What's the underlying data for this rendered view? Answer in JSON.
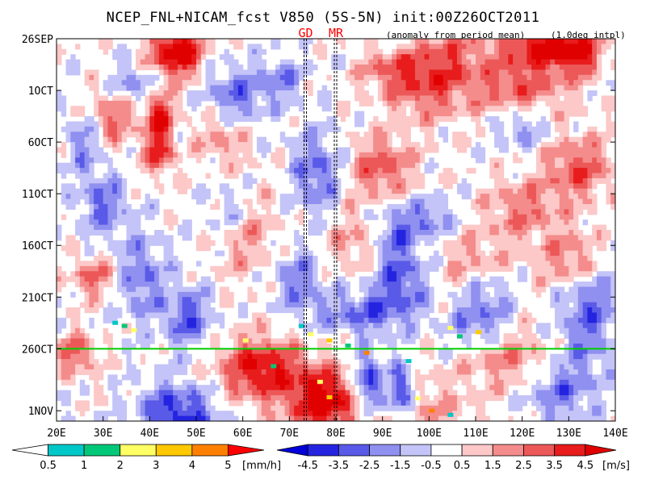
{
  "header": {
    "title": "NCEP_FNL+NICAM_fcst V850 (5S-5N) init:00Z26OCT2011",
    "note_left": "(anomaly from period mean)",
    "note_right": "(1.0deg intpl)"
  },
  "chart_data": {
    "type": "heatmap",
    "title": "NCEP_FNL+NICAM_fcst V850 (5S-5N) init:00Z26OCT2011",
    "x_axis": {
      "range": [
        20,
        140
      ],
      "ticks": [
        20,
        30,
        40,
        50,
        60,
        70,
        80,
        90,
        100,
        110,
        120,
        130,
        140
      ],
      "tick_labels": [
        "20E",
        "30E",
        "40E",
        "50E",
        "60E",
        "70E",
        "80E",
        "90E",
        "100E",
        "110E",
        "120E",
        "130E",
        "140E"
      ]
    },
    "y_axis": {
      "range": [
        "2011-09-26",
        "2011-11-02"
      ],
      "ticks": [
        "2011-09-26",
        "2011-10-01",
        "2011-10-06",
        "2011-10-11",
        "2011-10-16",
        "2011-10-21",
        "2011-10-26",
        "2011-11-01"
      ],
      "tick_labels": [
        "26SEP",
        "1OCT",
        "6OCT",
        "11OCT",
        "16OCT",
        "21OCT",
        "26OCT",
        "1NOV"
      ],
      "direction": "time increases downward"
    },
    "markers": [
      {
        "label": "GD",
        "lon": 73.5,
        "color": "#ff0000"
      },
      {
        "label": "MR",
        "lon": 80,
        "color": "#ff0000"
      }
    ],
    "init_line": {
      "date": "2011-10-26",
      "color": "#00cc00"
    },
    "shaded_field": {
      "levels": [
        -4.5,
        -3.5,
        -2.5,
        -1.5,
        -0.5,
        0.5,
        1.5,
        2.5,
        3.5,
        4.5
      ],
      "colors": [
        "#0000d8",
        "#2424e0",
        "#5a5ae8",
        "#9090f0",
        "#c4c4f8",
        "#ffffff",
        "#fcc8c8",
        "#f48c8c",
        "#ec5858",
        "#e81c1c",
        "#e00000"
      ],
      "unit": "[m/s]"
    },
    "rain_field": {
      "levels": [
        0.5,
        1,
        2,
        3,
        4,
        5
      ],
      "colors": [
        "#ffffff",
        "#00c8c8",
        "#00c878",
        "#ffff64",
        "#ffc800",
        "#ff8000",
        "#ff0000"
      ],
      "unit": "[mm/h]"
    }
  },
  "colorbar_rain": {
    "tick_labels": [
      "0.5",
      "1",
      "2",
      "3",
      "4",
      "5"
    ],
    "unit": "[mm/h]"
  },
  "colorbar_wind": {
    "tick_labels": [
      "-4.5",
      "-3.5",
      "-2.5",
      "-1.5",
      "-0.5",
      "0.5",
      "1.5",
      "2.5",
      "3.5",
      "4.5"
    ],
    "unit": "[m/s]"
  }
}
